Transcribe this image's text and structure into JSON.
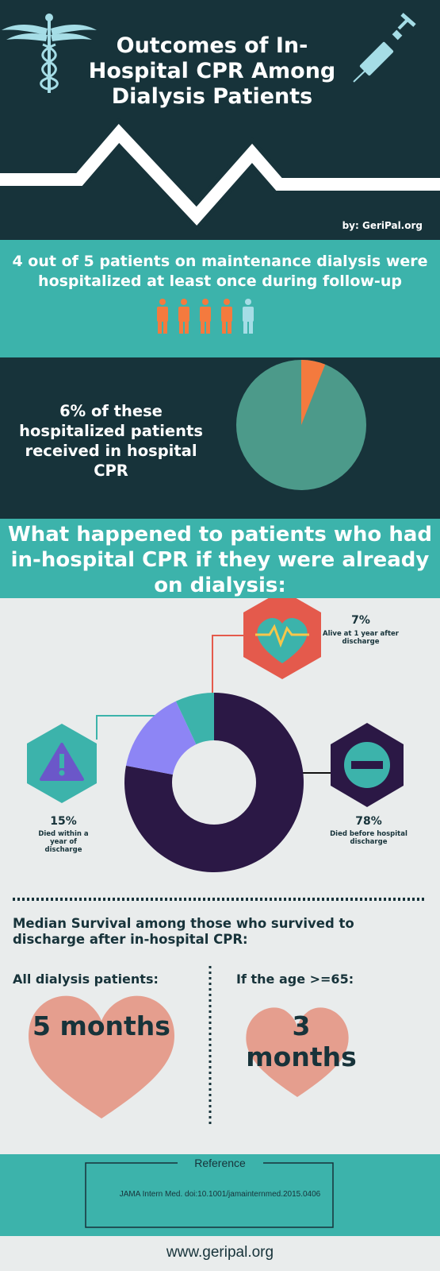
{
  "header": {
    "title": "Outcomes of In-Hospital CPR Among Dialysis Patients",
    "byline": "by: GeriPal.org",
    "icons": [
      "caduceus-icon",
      "syringe-icon",
      "heartbeat-line"
    ]
  },
  "stat_hospitalized": {
    "text": "4 out of 5 patients on maintenance dialysis were hospitalized at least once during follow-up",
    "people_total": 5,
    "people_highlighted": 4,
    "highlight_color": "#f47a3e",
    "other_color": "#a5dde6"
  },
  "stat_cpr": {
    "text": "6% of these hospitalized patients received in hospital CPR",
    "pie_percent": 6,
    "pie_color": "#4c9a8a",
    "slice_color": "#f47a3e"
  },
  "heading": {
    "text": "What happened to patients who had in-hospital CPR if they were already on dialysis:"
  },
  "chart_data": {
    "type": "pie",
    "donut": true,
    "categories": [
      "Died before hospital discharge",
      "Died within a year of discharge",
      "Alive at 1 year after discharge"
    ],
    "values": [
      78,
      15,
      7
    ],
    "colors": [
      "#2b1845",
      "#8d85f5",
      "#3cb3ab"
    ]
  },
  "outcomes": {
    "alive": {
      "pct": "7%",
      "label": "Alive at 1 year after discharge",
      "icon": "heart-rate-icon"
    },
    "died_year": {
      "pct": "15%",
      "label": "Died within a year of discharge",
      "icon": "warning-icon"
    },
    "died_before": {
      "pct": "78%",
      "label": "Died before hospital discharge",
      "icon": "minus-icon"
    }
  },
  "survival": {
    "title": "Median Survival among those who survived to discharge after in-hospital CPR:",
    "all_label": "All dialysis patients:",
    "all_value": "5 months",
    "age_label": "If the age >=65:",
    "age_value": "3 months",
    "heart_color": "#e59e8e"
  },
  "reference": {
    "title": "Reference",
    "text": "JAMA Intern Med. doi:10.1001/jamainternmed.2015.0406"
  },
  "footer": {
    "url": "www.geripal.org"
  }
}
